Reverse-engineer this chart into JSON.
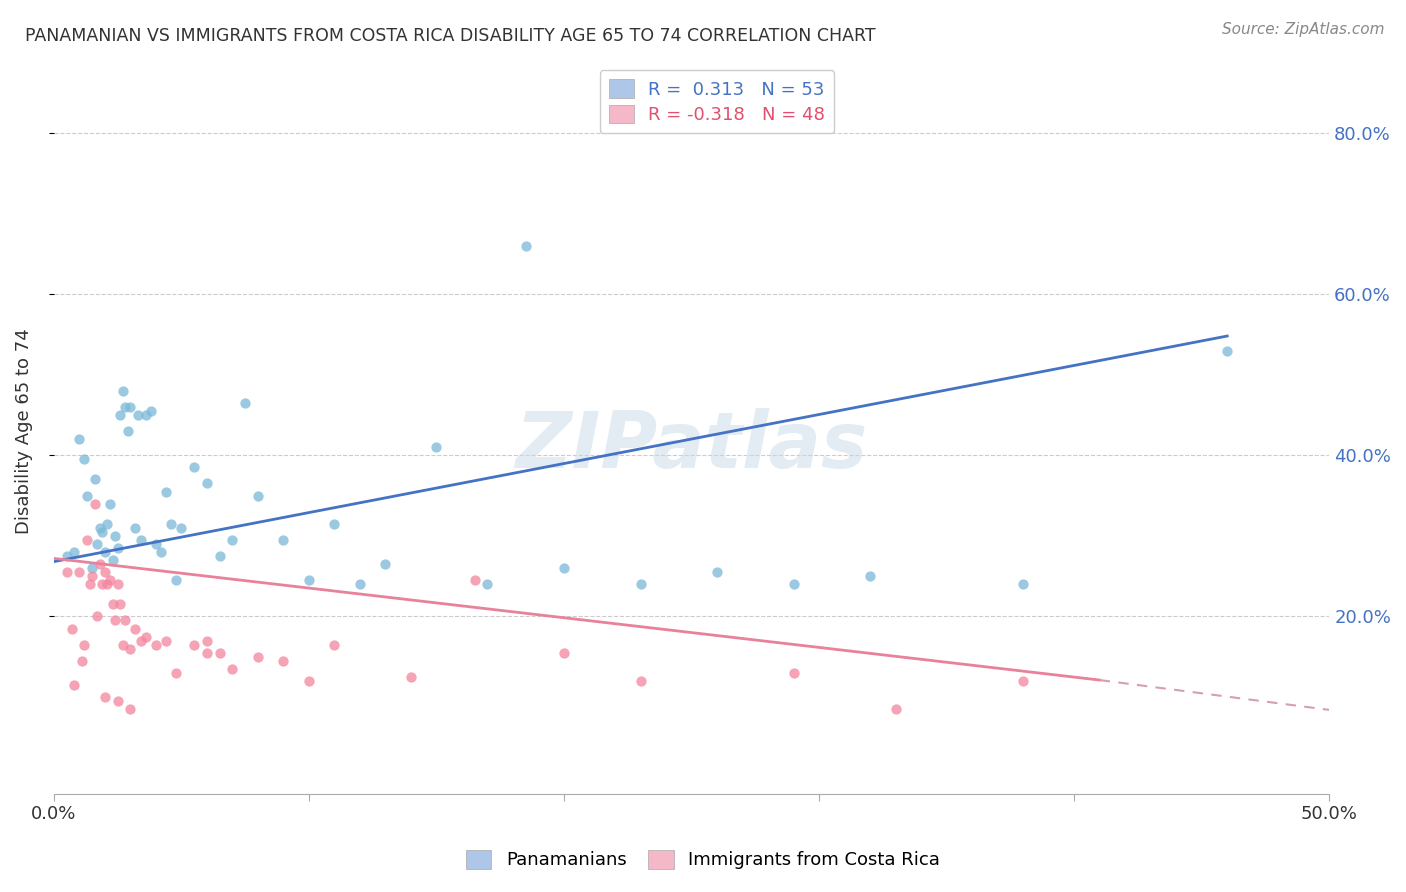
{
  "title": "PANAMANIAN VS IMMIGRANTS FROM COSTA RICA DISABILITY AGE 65 TO 74 CORRELATION CHART",
  "source": "Source: ZipAtlas.com",
  "ylabel": "Disability Age 65 to 74",
  "xlim": [
    0.0,
    0.5
  ],
  "ylim": [
    -0.02,
    0.88
  ],
  "xtick_positions": [
    0.0,
    0.1,
    0.2,
    0.3,
    0.4,
    0.5
  ],
  "xtick_labels": [
    "0.0%",
    "",
    "",
    "",
    "",
    "50.0%"
  ],
  "ytick_positions": [
    0.2,
    0.4,
    0.6,
    0.8
  ],
  "ytick_labels": [
    "20.0%",
    "40.0%",
    "60.0%",
    "80.0%"
  ],
  "legend_top": [
    {
      "label": "R =  0.313   N = 53",
      "patch_color": "#aec6e8"
    },
    {
      "label": "R = -0.318   N = 48",
      "patch_color": "#f4b8c8"
    }
  ],
  "legend_bottom": [
    "Panamanians",
    "Immigrants from Costa Rica"
  ],
  "panamanian_color": "#7ab8d9",
  "immigrant_color": "#f4849e",
  "regression_blue_color": "#4472c4",
  "regression_pink_solid_color": "#e8829a",
  "regression_pink_dashed_color": "#d4a0b0",
  "watermark": "ZIPatlas",
  "watermark_color": "#c8d8e8",
  "blue_line_x0": 0.0,
  "blue_line_y0": 0.268,
  "blue_line_x1": 0.46,
  "blue_line_y1": 0.548,
  "pink_line_x0": 0.0,
  "pink_line_y0": 0.272,
  "pink_line_x1_solid": 0.41,
  "pink_line_y1_solid": 0.121,
  "pink_line_x1_dashed": 0.5,
  "pink_line_y1_dashed": 0.084,
  "blue_scatter_x": [
    0.005,
    0.008,
    0.01,
    0.012,
    0.013,
    0.015,
    0.016,
    0.017,
    0.018,
    0.019,
    0.02,
    0.021,
    0.022,
    0.023,
    0.024,
    0.025,
    0.026,
    0.027,
    0.028,
    0.029,
    0.03,
    0.032,
    0.033,
    0.034,
    0.036,
    0.038,
    0.04,
    0.042,
    0.044,
    0.046,
    0.048,
    0.05,
    0.055,
    0.06,
    0.065,
    0.07,
    0.075,
    0.08,
    0.09,
    0.1,
    0.11,
    0.12,
    0.13,
    0.15,
    0.17,
    0.185,
    0.2,
    0.23,
    0.26,
    0.29,
    0.32,
    0.38,
    0.46
  ],
  "blue_scatter_y": [
    0.275,
    0.28,
    0.42,
    0.395,
    0.35,
    0.26,
    0.37,
    0.29,
    0.31,
    0.305,
    0.28,
    0.315,
    0.34,
    0.27,
    0.3,
    0.285,
    0.45,
    0.48,
    0.46,
    0.43,
    0.46,
    0.31,
    0.45,
    0.295,
    0.45,
    0.455,
    0.29,
    0.28,
    0.355,
    0.315,
    0.245,
    0.31,
    0.385,
    0.365,
    0.275,
    0.295,
    0.465,
    0.35,
    0.295,
    0.245,
    0.315,
    0.24,
    0.265,
    0.41,
    0.24,
    0.66,
    0.26,
    0.24,
    0.255,
    0.24,
    0.25,
    0.24,
    0.53
  ],
  "pink_scatter_x": [
    0.005,
    0.007,
    0.008,
    0.01,
    0.011,
    0.012,
    0.013,
    0.014,
    0.015,
    0.016,
    0.017,
    0.018,
    0.019,
    0.02,
    0.021,
    0.022,
    0.023,
    0.024,
    0.025,
    0.026,
    0.027,
    0.028,
    0.03,
    0.032,
    0.034,
    0.036,
    0.04,
    0.044,
    0.048,
    0.055,
    0.06,
    0.065,
    0.07,
    0.08,
    0.09,
    0.1,
    0.11,
    0.14,
    0.165,
    0.2,
    0.23,
    0.29,
    0.33,
    0.38,
    0.06,
    0.02,
    0.025,
    0.03
  ],
  "pink_scatter_y": [
    0.255,
    0.185,
    0.115,
    0.255,
    0.145,
    0.165,
    0.295,
    0.24,
    0.25,
    0.34,
    0.2,
    0.265,
    0.24,
    0.255,
    0.24,
    0.245,
    0.215,
    0.195,
    0.24,
    0.215,
    0.165,
    0.195,
    0.16,
    0.185,
    0.17,
    0.175,
    0.165,
    0.17,
    0.13,
    0.165,
    0.155,
    0.155,
    0.135,
    0.15,
    0.145,
    0.12,
    0.165,
    0.125,
    0.245,
    0.155,
    0.12,
    0.13,
    0.085,
    0.12,
    0.17,
    0.1,
    0.095,
    0.085
  ]
}
